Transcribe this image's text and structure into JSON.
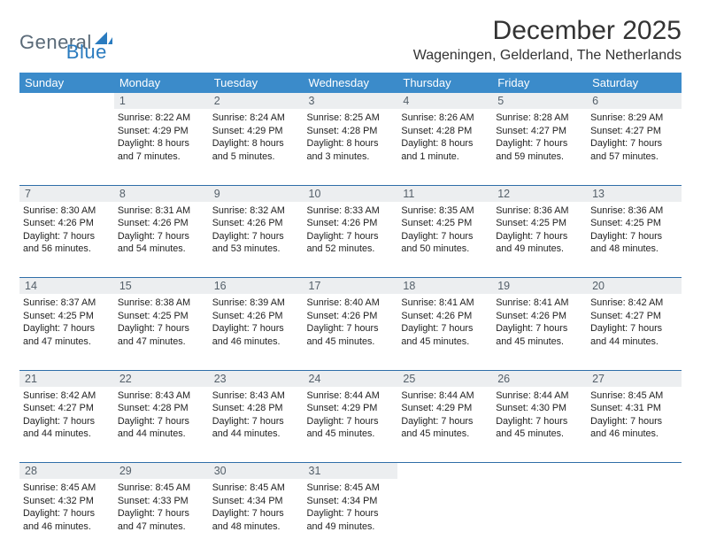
{
  "logo": {
    "part1": "General",
    "part2": "Blue"
  },
  "title": "December 2025",
  "location": "Wageningen, Gelderland, The Netherlands",
  "colors": {
    "header_bg": "#3b8bca",
    "header_text": "#ffffff",
    "daynum_bg": "#eceef0",
    "daynum_text": "#55606a",
    "row_border": "#2f6ea8",
    "logo_gray": "#5a6a78",
    "logo_blue": "#2a7bbf"
  },
  "weekdays": [
    "Sunday",
    "Monday",
    "Tuesday",
    "Wednesday",
    "Thursday",
    "Friday",
    "Saturday"
  ],
  "weeks": [
    [
      {
        "num": "",
        "lines": []
      },
      {
        "num": "1",
        "lines": [
          "Sunrise: 8:22 AM",
          "Sunset: 4:29 PM",
          "Daylight: 8 hours",
          "and 7 minutes."
        ]
      },
      {
        "num": "2",
        "lines": [
          "Sunrise: 8:24 AM",
          "Sunset: 4:29 PM",
          "Daylight: 8 hours",
          "and 5 minutes."
        ]
      },
      {
        "num": "3",
        "lines": [
          "Sunrise: 8:25 AM",
          "Sunset: 4:28 PM",
          "Daylight: 8 hours",
          "and 3 minutes."
        ]
      },
      {
        "num": "4",
        "lines": [
          "Sunrise: 8:26 AM",
          "Sunset: 4:28 PM",
          "Daylight: 8 hours",
          "and 1 minute."
        ]
      },
      {
        "num": "5",
        "lines": [
          "Sunrise: 8:28 AM",
          "Sunset: 4:27 PM",
          "Daylight: 7 hours",
          "and 59 minutes."
        ]
      },
      {
        "num": "6",
        "lines": [
          "Sunrise: 8:29 AM",
          "Sunset: 4:27 PM",
          "Daylight: 7 hours",
          "and 57 minutes."
        ]
      }
    ],
    [
      {
        "num": "7",
        "lines": [
          "Sunrise: 8:30 AM",
          "Sunset: 4:26 PM",
          "Daylight: 7 hours",
          "and 56 minutes."
        ]
      },
      {
        "num": "8",
        "lines": [
          "Sunrise: 8:31 AM",
          "Sunset: 4:26 PM",
          "Daylight: 7 hours",
          "and 54 minutes."
        ]
      },
      {
        "num": "9",
        "lines": [
          "Sunrise: 8:32 AM",
          "Sunset: 4:26 PM",
          "Daylight: 7 hours",
          "and 53 minutes."
        ]
      },
      {
        "num": "10",
        "lines": [
          "Sunrise: 8:33 AM",
          "Sunset: 4:26 PM",
          "Daylight: 7 hours",
          "and 52 minutes."
        ]
      },
      {
        "num": "11",
        "lines": [
          "Sunrise: 8:35 AM",
          "Sunset: 4:25 PM",
          "Daylight: 7 hours",
          "and 50 minutes."
        ]
      },
      {
        "num": "12",
        "lines": [
          "Sunrise: 8:36 AM",
          "Sunset: 4:25 PM",
          "Daylight: 7 hours",
          "and 49 minutes."
        ]
      },
      {
        "num": "13",
        "lines": [
          "Sunrise: 8:36 AM",
          "Sunset: 4:25 PM",
          "Daylight: 7 hours",
          "and 48 minutes."
        ]
      }
    ],
    [
      {
        "num": "14",
        "lines": [
          "Sunrise: 8:37 AM",
          "Sunset: 4:25 PM",
          "Daylight: 7 hours",
          "and 47 minutes."
        ]
      },
      {
        "num": "15",
        "lines": [
          "Sunrise: 8:38 AM",
          "Sunset: 4:25 PM",
          "Daylight: 7 hours",
          "and 47 minutes."
        ]
      },
      {
        "num": "16",
        "lines": [
          "Sunrise: 8:39 AM",
          "Sunset: 4:26 PM",
          "Daylight: 7 hours",
          "and 46 minutes."
        ]
      },
      {
        "num": "17",
        "lines": [
          "Sunrise: 8:40 AM",
          "Sunset: 4:26 PM",
          "Daylight: 7 hours",
          "and 45 minutes."
        ]
      },
      {
        "num": "18",
        "lines": [
          "Sunrise: 8:41 AM",
          "Sunset: 4:26 PM",
          "Daylight: 7 hours",
          "and 45 minutes."
        ]
      },
      {
        "num": "19",
        "lines": [
          "Sunrise: 8:41 AM",
          "Sunset: 4:26 PM",
          "Daylight: 7 hours",
          "and 45 minutes."
        ]
      },
      {
        "num": "20",
        "lines": [
          "Sunrise: 8:42 AM",
          "Sunset: 4:27 PM",
          "Daylight: 7 hours",
          "and 44 minutes."
        ]
      }
    ],
    [
      {
        "num": "21",
        "lines": [
          "Sunrise: 8:42 AM",
          "Sunset: 4:27 PM",
          "Daylight: 7 hours",
          "and 44 minutes."
        ]
      },
      {
        "num": "22",
        "lines": [
          "Sunrise: 8:43 AM",
          "Sunset: 4:28 PM",
          "Daylight: 7 hours",
          "and 44 minutes."
        ]
      },
      {
        "num": "23",
        "lines": [
          "Sunrise: 8:43 AM",
          "Sunset: 4:28 PM",
          "Daylight: 7 hours",
          "and 44 minutes."
        ]
      },
      {
        "num": "24",
        "lines": [
          "Sunrise: 8:44 AM",
          "Sunset: 4:29 PM",
          "Daylight: 7 hours",
          "and 45 minutes."
        ]
      },
      {
        "num": "25",
        "lines": [
          "Sunrise: 8:44 AM",
          "Sunset: 4:29 PM",
          "Daylight: 7 hours",
          "and 45 minutes."
        ]
      },
      {
        "num": "26",
        "lines": [
          "Sunrise: 8:44 AM",
          "Sunset: 4:30 PM",
          "Daylight: 7 hours",
          "and 45 minutes."
        ]
      },
      {
        "num": "27",
        "lines": [
          "Sunrise: 8:45 AM",
          "Sunset: 4:31 PM",
          "Daylight: 7 hours",
          "and 46 minutes."
        ]
      }
    ],
    [
      {
        "num": "28",
        "lines": [
          "Sunrise: 8:45 AM",
          "Sunset: 4:32 PM",
          "Daylight: 7 hours",
          "and 46 minutes."
        ]
      },
      {
        "num": "29",
        "lines": [
          "Sunrise: 8:45 AM",
          "Sunset: 4:33 PM",
          "Daylight: 7 hours",
          "and 47 minutes."
        ]
      },
      {
        "num": "30",
        "lines": [
          "Sunrise: 8:45 AM",
          "Sunset: 4:34 PM",
          "Daylight: 7 hours",
          "and 48 minutes."
        ]
      },
      {
        "num": "31",
        "lines": [
          "Sunrise: 8:45 AM",
          "Sunset: 4:34 PM",
          "Daylight: 7 hours",
          "and 49 minutes."
        ]
      },
      {
        "num": "",
        "lines": []
      },
      {
        "num": "",
        "lines": []
      },
      {
        "num": "",
        "lines": []
      }
    ]
  ]
}
